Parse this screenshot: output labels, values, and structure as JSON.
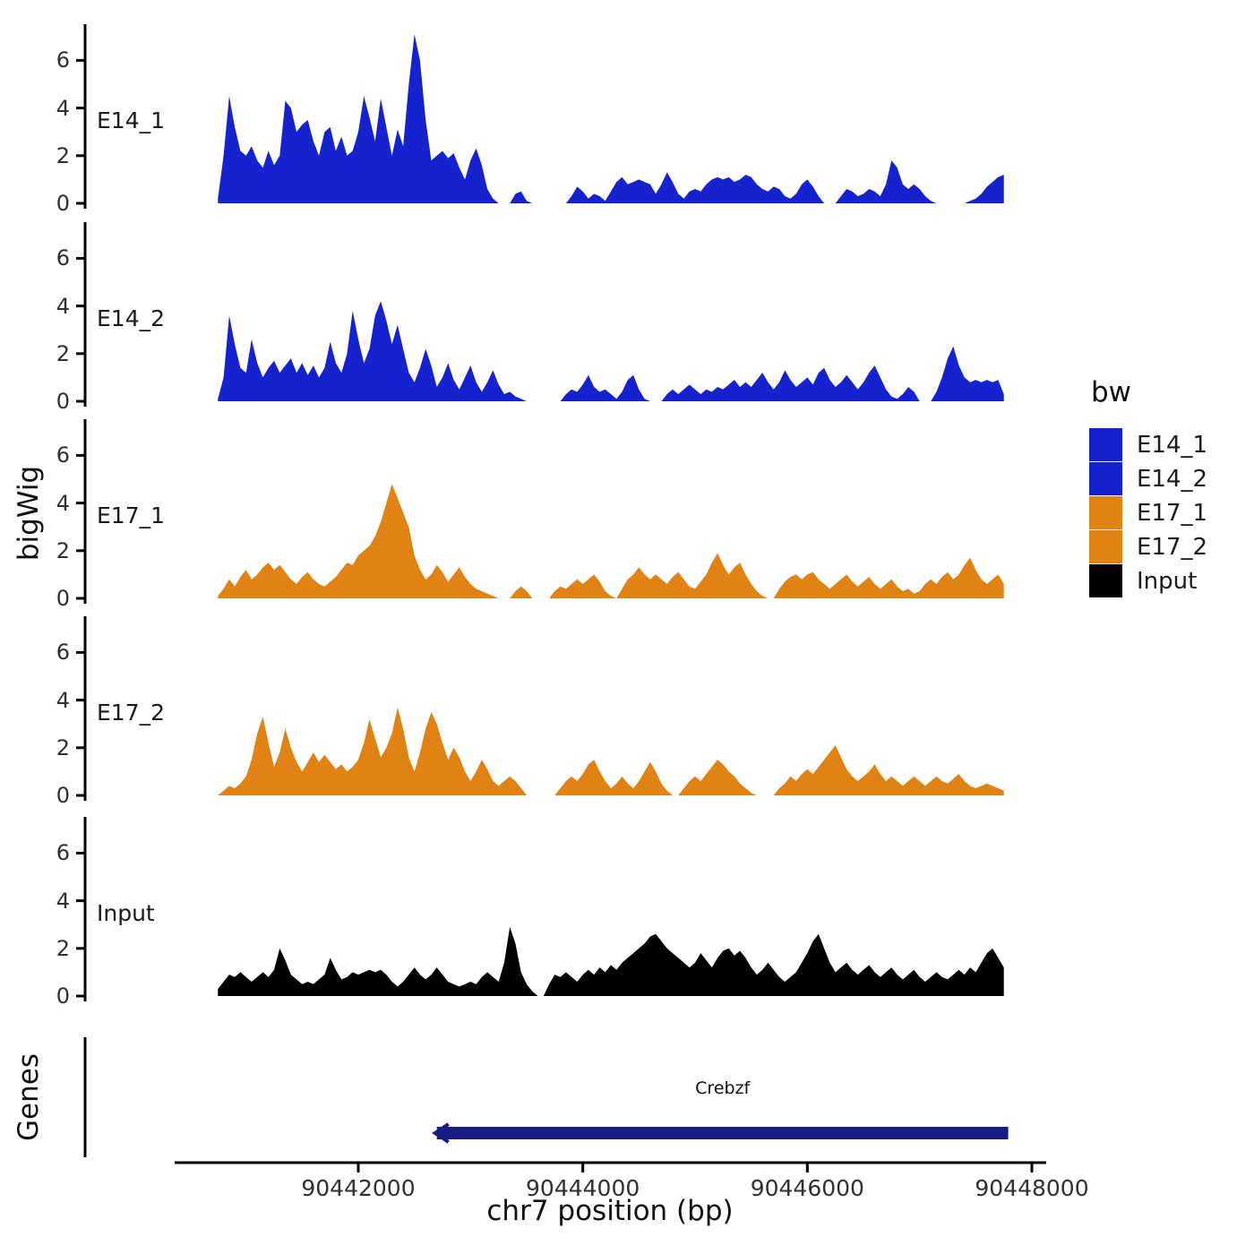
{
  "axis": {
    "y_label": "bigWig",
    "genes_label": "Genes",
    "x_label": "chr7 position (bp)",
    "x_ticks": [
      90442000,
      90444000,
      90446000,
      90448000
    ],
    "x_tick_labels": [
      "90442000",
      "90444000",
      "90446000",
      "90448000"
    ],
    "x_range": [
      90440750,
      90448000
    ],
    "y_ticks": [
      0,
      2,
      4,
      6
    ],
    "y_max": 7.4
  },
  "legend": {
    "title": "bw",
    "items": [
      {
        "label": "E14_1",
        "color": "#1522CE"
      },
      {
        "label": "E14_2",
        "color": "#1522CE"
      },
      {
        "label": "E17_1",
        "color": "#E08214"
      },
      {
        "label": "E17_2",
        "color": "#E08214"
      },
      {
        "label": "Input",
        "color": "#000000"
      }
    ]
  },
  "gene_track": {
    "gene": {
      "name": "Crebzf",
      "start": 90442700,
      "end": 90447790,
      "strand": "-",
      "color": "#1B1B84"
    }
  },
  "chart_data": {
    "type": "area",
    "title": "",
    "xlabel": "chr7 position (bp)",
    "ylabel": "bigWig",
    "ylim": [
      0,
      7.4
    ],
    "x_start": 90440750,
    "x_step": 50,
    "series": [
      {
        "name": "E14_1",
        "color": "#1522CE",
        "values": [
          0.2,
          2.0,
          4.5,
          3.2,
          2.2,
          2.0,
          2.4,
          1.8,
          1.5,
          2.2,
          1.6,
          2.0,
          4.3,
          4.0,
          3.0,
          3.3,
          3.5,
          2.6,
          2.0,
          3.0,
          3.2,
          2.2,
          2.8,
          2.0,
          2.2,
          3.0,
          4.5,
          3.6,
          2.6,
          4.4,
          3.2,
          2.0,
          3.1,
          2.4,
          5.0,
          7.1,
          6.0,
          3.5,
          1.8,
          2.0,
          2.2,
          1.9,
          2.1,
          1.5,
          1.0,
          1.8,
          2.3,
          1.6,
          0.6,
          0.2,
          0,
          0,
          0,
          0.4,
          0.5,
          0.1,
          0,
          0,
          0,
          0,
          0,
          0,
          0,
          0.3,
          0.7,
          0.5,
          0.2,
          0.4,
          0.3,
          0.1,
          0.5,
          0.9,
          1.1,
          0.8,
          0.9,
          1.0,
          0.9,
          0.8,
          0.4,
          0.8,
          1.3,
          0.9,
          0.4,
          0.2,
          0.5,
          0.6,
          0.5,
          0.8,
          1.0,
          1.1,
          1.0,
          1.1,
          0.9,
          1.0,
          1.2,
          1.1,
          0.8,
          0.6,
          0.5,
          0.7,
          0.6,
          0.3,
          0.2,
          0.4,
          0.8,
          1.0,
          0.7,
          0.3,
          0,
          0,
          0,
          0.3,
          0.6,
          0.5,
          0.3,
          0.4,
          0.6,
          0.5,
          0.3,
          0.8,
          1.8,
          1.5,
          0.8,
          0.6,
          0.8,
          0.6,
          0.3,
          0.1,
          0,
          0,
          0,
          0,
          0,
          0,
          0.1,
          0.2,
          0.4,
          0.7,
          0.9,
          1.1,
          1.2
        ]
      },
      {
        "name": "E14_2",
        "color": "#1522CE",
        "values": [
          0.1,
          1.0,
          3.6,
          2.4,
          1.4,
          1.2,
          2.6,
          1.6,
          1.0,
          1.4,
          1.7,
          1.2,
          1.5,
          1.8,
          1.2,
          1.6,
          1.1,
          1.5,
          1.0,
          1.4,
          2.5,
          1.6,
          1.2,
          2.0,
          3.8,
          2.6,
          1.6,
          2.2,
          3.6,
          4.2,
          3.4,
          2.4,
          3.2,
          2.2,
          1.2,
          0.8,
          1.4,
          2.2,
          1.5,
          0.6,
          1.0,
          1.6,
          0.9,
          0.5,
          1.0,
          1.5,
          0.8,
          0.4,
          0.8,
          1.3,
          0.7,
          0.3,
          0.4,
          0.2,
          0.1,
          0,
          0,
          0,
          0,
          0,
          0,
          0,
          0.3,
          0.5,
          0.4,
          0.7,
          1.1,
          0.6,
          0.4,
          0.5,
          0.3,
          0.1,
          0.4,
          0.9,
          1.1,
          0.5,
          0.1,
          0,
          0,
          0,
          0.3,
          0.5,
          0.3,
          0.5,
          0.7,
          0.5,
          0.3,
          0.5,
          0.4,
          0.6,
          0.5,
          0.7,
          0.9,
          0.6,
          0.8,
          0.6,
          0.9,
          1.2,
          0.8,
          0.5,
          0.8,
          1.3,
          0.9,
          0.6,
          0.8,
          1.0,
          0.7,
          1.2,
          1.4,
          0.9,
          0.6,
          0.8,
          1.1,
          0.8,
          0.5,
          0.8,
          1.2,
          1.5,
          1.0,
          0.5,
          0.2,
          0.1,
          0.3,
          0.6,
          0.4,
          0,
          0,
          0,
          0.4,
          1.0,
          1.8,
          2.3,
          1.5,
          1.0,
          0.8,
          0.9,
          0.8,
          0.9,
          0.8,
          0.9,
          0.3
        ]
      },
      {
        "name": "E17_1",
        "color": "#E08214",
        "values": [
          0.1,
          0.4,
          0.8,
          0.5,
          0.9,
          1.2,
          0.8,
          1.0,
          1.3,
          1.5,
          1.2,
          1.4,
          1.1,
          0.8,
          0.6,
          0.9,
          1.1,
          0.8,
          0.6,
          0.5,
          0.7,
          0.9,
          1.2,
          1.5,
          1.4,
          1.8,
          2.0,
          2.2,
          2.6,
          3.2,
          4.0,
          4.8,
          4.2,
          3.6,
          3.0,
          1.8,
          1.2,
          0.8,
          1.0,
          1.4,
          1.1,
          0.7,
          1.0,
          1.3,
          0.9,
          0.6,
          0.4,
          0.3,
          0.2,
          0.1,
          0,
          0,
          0,
          0.3,
          0.5,
          0.3,
          0,
          0,
          0,
          0,
          0.3,
          0.5,
          0.4,
          0.6,
          0.8,
          0.6,
          0.8,
          1.0,
          0.7,
          0.3,
          0.1,
          0,
          0.4,
          0.8,
          1.0,
          1.3,
          1.0,
          0.8,
          1.0,
          0.8,
          0.6,
          0.9,
          1.1,
          0.8,
          0.5,
          0.4,
          0.7,
          1.0,
          1.5,
          1.9,
          1.4,
          1.0,
          1.3,
          1.5,
          1.0,
          0.6,
          0.3,
          0.1,
          0,
          0,
          0.4,
          0.7,
          0.9,
          1.0,
          0.8,
          1.0,
          1.1,
          0.8,
          0.6,
          0.4,
          0.6,
          0.8,
          1.0,
          0.7,
          0.5,
          0.7,
          0.9,
          0.6,
          0.4,
          0.6,
          0.8,
          0.5,
          0.3,
          0.4,
          0.2,
          0.3,
          0.6,
          0.8,
          0.6,
          0.9,
          1.1,
          0.8,
          1.0,
          1.4,
          1.7,
          1.2,
          0.8,
          0.6,
          0.8,
          1.0,
          0.6
        ]
      },
      {
        "name": "E17_2",
        "color": "#E08214",
        "values": [
          0,
          0.2,
          0.4,
          0.3,
          0.5,
          0.8,
          1.5,
          2.6,
          3.3,
          2.2,
          1.2,
          1.8,
          2.8,
          2.0,
          1.4,
          1.0,
          1.4,
          1.8,
          1.4,
          1.7,
          1.4,
          1.1,
          1.3,
          1.0,
          1.2,
          1.5,
          2.2,
          3.2,
          2.4,
          1.6,
          2.0,
          2.6,
          3.7,
          2.8,
          1.6,
          1.0,
          1.8,
          2.8,
          3.5,
          3.0,
          2.2,
          1.5,
          2.0,
          1.6,
          1.0,
          0.6,
          1.0,
          1.5,
          1.1,
          0.6,
          0.4,
          0.6,
          0.8,
          0.6,
          0.3,
          0,
          0,
          0,
          0,
          0,
          0,
          0.3,
          0.6,
          0.8,
          0.6,
          0.9,
          1.3,
          1.5,
          1.0,
          0.6,
          0.3,
          0.5,
          0.8,
          0.5,
          0.3,
          0.6,
          1.0,
          1.4,
          1.0,
          0.5,
          0.2,
          0,
          0,
          0.3,
          0.6,
          0.8,
          0.6,
          0.9,
          1.2,
          1.5,
          1.3,
          1.0,
          0.8,
          0.5,
          0.3,
          0.1,
          0,
          0,
          0,
          0,
          0.3,
          0.5,
          0.8,
          0.6,
          0.9,
          1.1,
          0.9,
          1.2,
          1.5,
          1.8,
          2.1,
          1.6,
          1.1,
          0.8,
          0.6,
          0.8,
          1.0,
          1.3,
          0.9,
          0.6,
          0.8,
          0.6,
          0.4,
          0.6,
          0.8,
          0.6,
          0.4,
          0.6,
          0.8,
          0.6,
          0.5,
          0.7,
          0.9,
          0.6,
          0.4,
          0.3,
          0.4,
          0.5,
          0.4,
          0.3,
          0.2
        ]
      },
      {
        "name": "Input",
        "color": "#000000",
        "values": [
          0.3,
          0.6,
          0.9,
          0.8,
          1.0,
          0.8,
          0.6,
          0.8,
          1.0,
          0.8,
          1.1,
          2.0,
          1.5,
          0.9,
          0.7,
          0.5,
          0.6,
          0.5,
          0.7,
          0.9,
          1.6,
          1.1,
          0.7,
          0.8,
          1.0,
          0.9,
          1.0,
          1.1,
          1.0,
          1.1,
          0.9,
          0.6,
          0.4,
          0.6,
          0.9,
          1.2,
          0.9,
          0.7,
          0.9,
          1.2,
          0.9,
          0.6,
          0.5,
          0.4,
          0.5,
          0.6,
          0.5,
          0.8,
          1.0,
          0.8,
          0.6,
          1.4,
          2.9,
          2.2,
          1.0,
          0.5,
          0.2,
          0,
          0,
          0.5,
          0.9,
          0.8,
          1.0,
          0.8,
          0.6,
          0.9,
          1.1,
          0.9,
          1.2,
          1.0,
          1.3,
          1.1,
          1.4,
          1.6,
          1.8,
          2.0,
          2.2,
          2.5,
          2.6,
          2.3,
          2.0,
          1.8,
          1.6,
          1.4,
          1.2,
          1.4,
          1.8,
          1.5,
          1.2,
          1.6,
          1.9,
          2.0,
          1.7,
          1.9,
          1.6,
          1.2,
          0.9,
          1.1,
          1.4,
          1.1,
          0.8,
          0.6,
          0.8,
          1.0,
          1.4,
          1.8,
          2.3,
          2.6,
          2.0,
          1.4,
          1.0,
          1.2,
          1.4,
          1.1,
          0.9,
          1.1,
          1.3,
          1.0,
          0.8,
          1.0,
          1.2,
          0.9,
          0.7,
          0.9,
          1.1,
          0.8,
          0.6,
          0.8,
          1.0,
          0.8,
          0.7,
          0.9,
          1.1,
          0.9,
          1.2,
          1.0,
          1.4,
          1.8,
          2.0,
          1.6,
          1.2
        ]
      }
    ]
  }
}
